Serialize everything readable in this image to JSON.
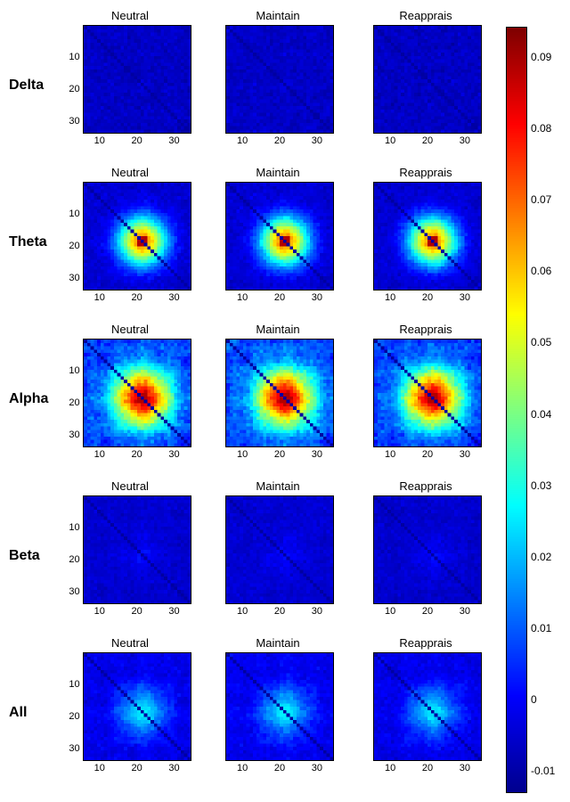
{
  "figure": {
    "row_labels": [
      "Delta",
      "Theta",
      "Alpha",
      "Beta",
      "All"
    ],
    "col_titles": [
      "Neutral",
      "Maintain",
      "Reapprais"
    ],
    "axis_ticks": [
      10,
      20,
      30
    ],
    "matrix_size": 34,
    "heatmap_resolution": 32,
    "yaxis_visible_cols": [
      0
    ],
    "colormap": {
      "name": "jet",
      "stops": [
        {
          "t": 0.0,
          "color": "#00008f"
        },
        {
          "t": 0.125,
          "color": "#0000ff"
        },
        {
          "t": 0.375,
          "color": "#00ffff"
        },
        {
          "t": 0.625,
          "color": "#ffff00"
        },
        {
          "t": 0.875,
          "color": "#ff0000"
        },
        {
          "t": 1.0,
          "color": "#7f0000"
        }
      ]
    },
    "colorbar": {
      "vmin": -0.012,
      "vmax": 0.095,
      "ticks": [
        0.09,
        0.08,
        0.07,
        0.06,
        0.05,
        0.04,
        0.03,
        0.02,
        0.01,
        0,
        -0.01
      ]
    },
    "panels": {
      "Delta": {
        "base_level": 0.06,
        "noise": 0.06,
        "diag_level": 0.02,
        "hotspot_strength": 0.0,
        "hotspot_center": [
          17,
          17
        ],
        "hotspot_radius": 4,
        "cross_hatch": 0.03
      },
      "Theta": {
        "base_level": 0.07,
        "noise": 0.06,
        "diag_level": 0.02,
        "hotspot_strength": 0.7,
        "hotspot_center": [
          17,
          17
        ],
        "hotspot_radius": 5,
        "cross_hatch": 0.05
      },
      "Alpha": {
        "base_level": 0.18,
        "noise": 0.1,
        "diag_level": 0.02,
        "hotspot_strength": 0.75,
        "hotspot_center": [
          17,
          17
        ],
        "hotspot_radius": 6,
        "cross_hatch": 0.2
      },
      "Beta": {
        "base_level": 0.07,
        "noise": 0.05,
        "diag_level": 0.02,
        "hotspot_strength": 0.05,
        "hotspot_center": [
          17,
          17
        ],
        "hotspot_radius": 4,
        "cross_hatch": 0.04
      },
      "All": {
        "base_level": 0.1,
        "noise": 0.06,
        "diag_level": 0.02,
        "hotspot_strength": 0.25,
        "hotspot_center": [
          17,
          17
        ],
        "hotspot_radius": 5,
        "cross_hatch": 0.1
      }
    },
    "column_variation": [
      1.0,
      1.05,
      0.98
    ],
    "background_color": "#ffffff",
    "label_fontsize": 16,
    "tick_fontsize": 11,
    "title_fontsize": 13
  }
}
